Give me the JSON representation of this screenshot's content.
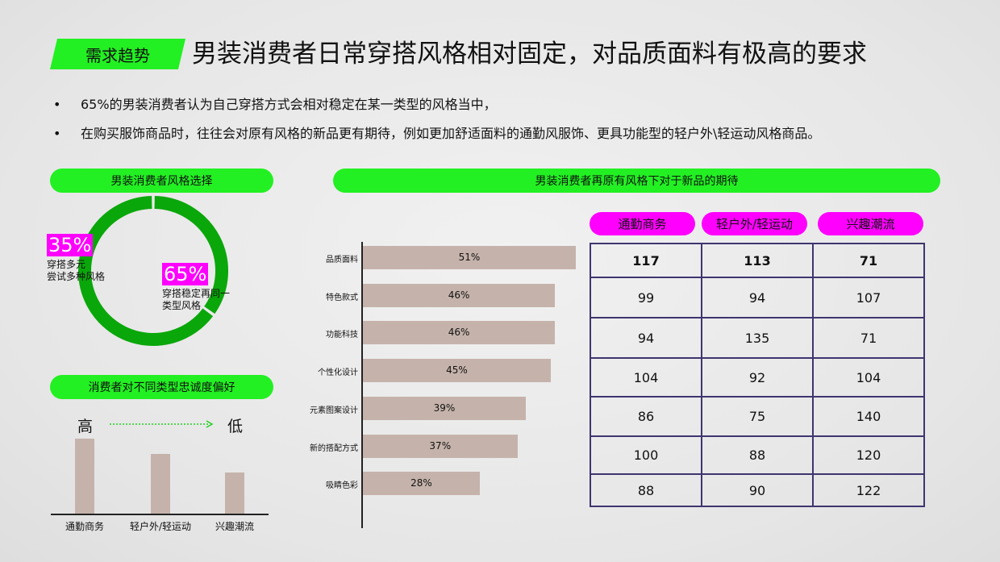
{
  "header": {
    "tag": "需求趋势",
    "title": "男装消费者日常穿搭风格相对固定，对品质面料有极高的要求"
  },
  "bullets": [
    "65%的男装消费者认为自己穿搭方式会相对稳定在某一类型的风格当中，",
    "在购买服饰商品时，往往会对原有风格的新品更有期待，例如更加舒适面料的通勤风服饰、更具功能型的轻户外\\轻运动风格商品。"
  ],
  "colors": {
    "accent_green": "#22f022",
    "donut_green": "#0aa70a",
    "magenta": "#ff00ff",
    "bar": "#c5b3ab",
    "table_border": "#3f3570"
  },
  "sections": {
    "style_choice": "男装消费者风格选择",
    "loyalty": "消费者对不同类型忠诚度偏好",
    "expectation": "男装消费者再原有风格下对于新品的期待"
  },
  "chart_data": [
    {
      "type": "pie",
      "title": "男装消费者风格选择",
      "slices": [
        {
          "label": "穿搭多元\n尝试多种风格",
          "value": 35,
          "display": "35%"
        },
        {
          "label": "穿搭稳定再同一\n类型风格",
          "value": 65,
          "display": "65%"
        }
      ]
    },
    {
      "type": "bar",
      "title": "消费者对不同类型忠诚度偏好",
      "categories": [
        "通勤商务",
        "轻户外/轻运动",
        "兴趣潮流"
      ],
      "values": [
        100,
        80,
        55
      ],
      "scale_high": "高",
      "scale_low": "低"
    },
    {
      "type": "bar",
      "orientation": "horizontal",
      "title": "男装消费者再原有风格下对于新品的期待",
      "categories": [
        "品质面料",
        "特色款式",
        "功能科技",
        "个性化设计",
        "元素图案设计",
        "新的搭配方式",
        "吸睛色彩"
      ],
      "values": [
        51,
        46,
        46,
        45,
        39,
        37,
        28
      ],
      "labels": [
        "51%",
        "46%",
        "46%",
        "45%",
        "39%",
        "37%",
        "28%"
      ]
    },
    {
      "type": "table",
      "columns": [
        "通勤商务",
        "轻户外/轻运动",
        "兴趣潮流"
      ],
      "rows": [
        [
          "117",
          "113",
          "71"
        ],
        [
          "99",
          "94",
          "107"
        ],
        [
          "94",
          "135",
          "71"
        ],
        [
          "104",
          "92",
          "104"
        ],
        [
          "86",
          "75",
          "140"
        ],
        [
          "100",
          "88",
          "120"
        ],
        [
          "88",
          "90",
          "122"
        ]
      ]
    }
  ]
}
